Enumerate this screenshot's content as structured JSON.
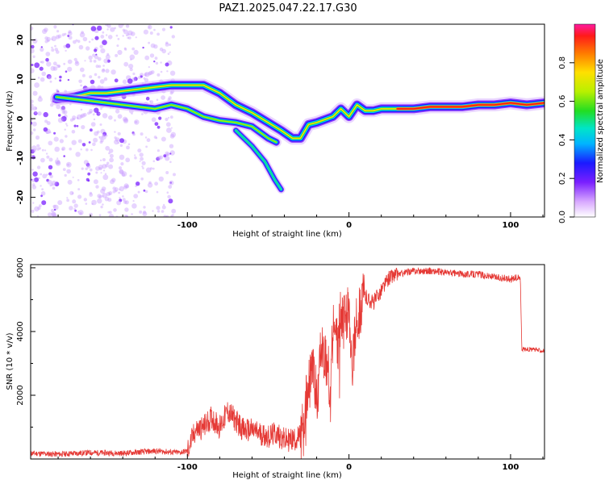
{
  "title": "PAZ1.2025.047.22.17.G30",
  "chart_data": [
    {
      "type": "heatmap",
      "xlabel": "Height of straight line (km)",
      "ylabel": "Frequency (Hz)",
      "xlim": [
        -197,
        121
      ],
      "ylim": [
        -25,
        24
      ],
      "x_ticks": [
        -100,
        0,
        100
      ],
      "y_ticks": [
        20,
        10,
        0,
        -10,
        -20
      ],
      "colorbar": {
        "label": "Normalized spectral amplitude",
        "range": [
          0.0,
          1.0
        ],
        "ticks": [
          "0.0",
          "0.2",
          "0.4",
          "0.6",
          "0.8"
        ]
      },
      "main_ridge": [
        {
          "x": -181,
          "y": 5.0
        },
        {
          "x": -170,
          "y": 5.5
        },
        {
          "x": -160,
          "y": 6.5
        },
        {
          "x": -150,
          "y": 6.5
        },
        {
          "x": -140,
          "y": 7.0
        },
        {
          "x": -130,
          "y": 7.5
        },
        {
          "x": -120,
          "y": 8.0
        },
        {
          "x": -110,
          "y": 8.5
        },
        {
          "x": -100,
          "y": 8.5
        },
        {
          "x": -90,
          "y": 8.5
        },
        {
          "x": -80,
          "y": 6.5
        },
        {
          "x": -70,
          "y": 3.5
        },
        {
          "x": -60,
          "y": 1.5
        },
        {
          "x": -50,
          "y": -1.0
        },
        {
          "x": -42,
          "y": -3.0
        },
        {
          "x": -35,
          "y": -5.0
        },
        {
          "x": -30,
          "y": -5.0
        },
        {
          "x": -25,
          "y": -1.5
        },
        {
          "x": -20,
          "y": -1.0
        },
        {
          "x": -10,
          "y": 0.5
        },
        {
          "x": -5,
          "y": 2.5
        },
        {
          "x": 0,
          "y": 0.5
        },
        {
          "x": 5,
          "y": 3.5
        },
        {
          "x": 10,
          "y": 2.0
        },
        {
          "x": 15,
          "y": 2.0
        },
        {
          "x": 20,
          "y": 2.5
        },
        {
          "x": 30,
          "y": 2.5
        },
        {
          "x": 40,
          "y": 2.5
        },
        {
          "x": 50,
          "y": 3.0
        },
        {
          "x": 60,
          "y": 3.0
        },
        {
          "x": 70,
          "y": 3.0
        },
        {
          "x": 80,
          "y": 3.5
        },
        {
          "x": 90,
          "y": 3.5
        },
        {
          "x": 100,
          "y": 4.0
        },
        {
          "x": 110,
          "y": 3.5
        },
        {
          "x": 121,
          "y": 4.0
        }
      ],
      "secondary_ridge": [
        {
          "x": -181,
          "y": 5.5
        },
        {
          "x": -160,
          "y": 4.5
        },
        {
          "x": -140,
          "y": 3.5
        },
        {
          "x": -120,
          "y": 2.5
        },
        {
          "x": -110,
          "y": 3.5
        },
        {
          "x": -100,
          "y": 2.5
        },
        {
          "x": -90,
          "y": 0.5
        },
        {
          "x": -80,
          "y": -0.5
        },
        {
          "x": -70,
          "y": -1.0
        },
        {
          "x": -60,
          "y": -2.0
        },
        {
          "x": -50,
          "y": -5.0
        },
        {
          "x": -45,
          "y": -6.0
        }
      ],
      "branch_ridge": [
        {
          "x": -70,
          "y": -3.0
        },
        {
          "x": -60,
          "y": -7.0
        },
        {
          "x": -52,
          "y": -11.0
        },
        {
          "x": -46,
          "y": -15.5
        },
        {
          "x": -42,
          "y": -18.0
        }
      ]
    },
    {
      "type": "line",
      "xlabel": "Height of straight line (km)",
      "ylabel": "SNR (10 * v/v)",
      "xlim": [
        -197,
        121
      ],
      "ylim": [
        0,
        6100
      ],
      "x_ticks": [
        -100,
        0,
        100
      ],
      "y_ticks": [
        2000,
        4000,
        6000
      ],
      "color": "#e53935",
      "x": [
        -197,
        -180,
        -160,
        -140,
        -120,
        -105,
        -100,
        -95,
        -90,
        -85,
        -80,
        -75,
        -70,
        -65,
        -60,
        -55,
        -50,
        -45,
        -40,
        -35,
        -30,
        -27,
        -25,
        -22,
        -20,
        -17,
        -15,
        -12,
        -10,
        -7,
        -5,
        -2,
        0,
        2,
        5,
        10,
        15,
        20,
        25,
        30,
        40,
        50,
        60,
        70,
        80,
        90,
        100,
        106,
        107,
        110,
        121
      ],
      "y": [
        180,
        150,
        200,
        180,
        250,
        200,
        250,
        900,
        1000,
        1300,
        1000,
        1500,
        1200,
        900,
        900,
        800,
        700,
        800,
        600,
        600,
        700,
        1600,
        2200,
        2900,
        1800,
        3500,
        3300,
        2500,
        4000,
        3600,
        4500,
        4200,
        5000,
        3000,
        4500,
        5100,
        4900,
        5300,
        5700,
        5800,
        5900,
        5900,
        5850,
        5800,
        5800,
        5700,
        5650,
        5700,
        3450,
        3450,
        3400
      ]
    }
  ]
}
